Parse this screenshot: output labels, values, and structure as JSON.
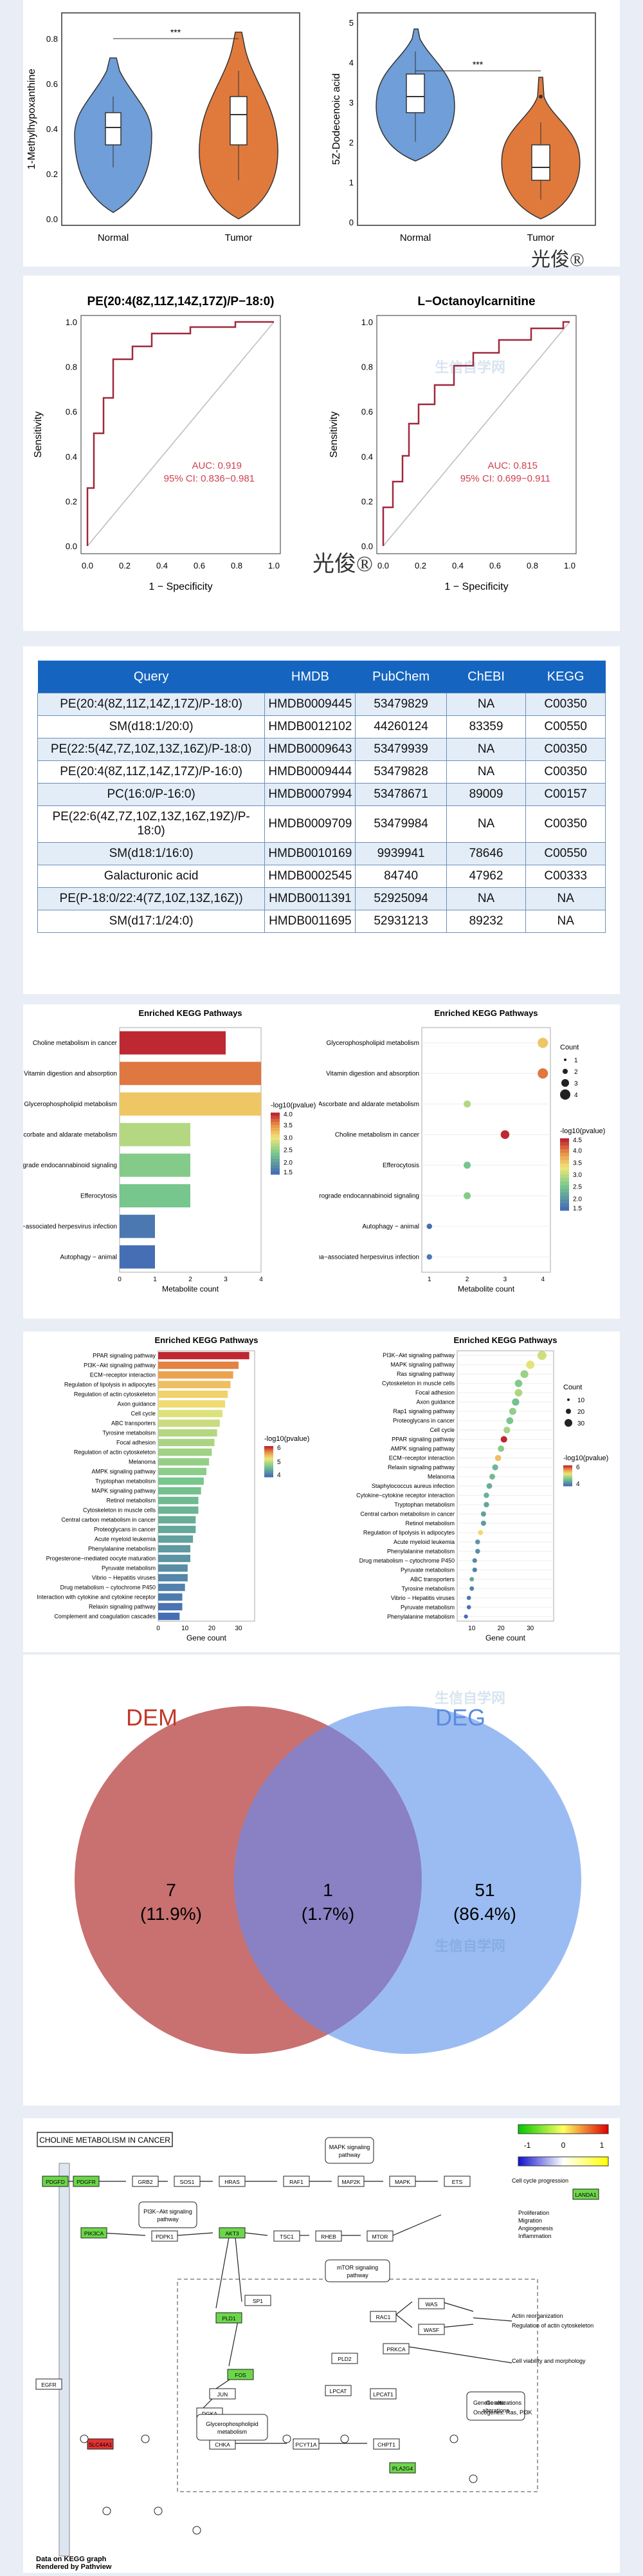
{
  "violin": {
    "left": {
      "ylabel": "1-Methylhypoxanthine",
      "ticks": [
        "0.0",
        "0.2",
        "0.4",
        "0.6",
        "0.8"
      ],
      "groups": [
        "Normal",
        "Tumor"
      ],
      "colors": [
        "#6f9ed8",
        "#e07a3c"
      ],
      "medians": [
        0.28,
        0.37
      ],
      "signif": "***"
    },
    "right": {
      "ylabel": "5Z-Dodecenoic acid",
      "ticks": [
        "0",
        "1",
        "2",
        "3",
        "4",
        "5"
      ],
      "groups": [
        "Normal",
        "Tumor"
      ],
      "colors": [
        "#6f9ed8",
        "#e07a3c"
      ],
      "medians": [
        3.0,
        2.1
      ],
      "signif": "***"
    },
    "signature": "光俊®"
  },
  "roc": {
    "left": {
      "title": "PE(20:4(8Z,11Z,14Z,17Z)/P−18:0)",
      "auc": "AUC: 0.919",
      "ci": "95% CI: 0.836−0.981"
    },
    "right": {
      "title": "L−Octanoylcarnitine",
      "auc": "AUC: 0.815",
      "ci": "95% CI: 0.699−0.911"
    },
    "xlabel": "1 − Specificity",
    "ylabel": "Sensitivity",
    "ticks": [
      "0.0",
      "0.2",
      "0.4",
      "0.6",
      "0.8",
      "1.0"
    ],
    "signature": "光俊®"
  },
  "table": {
    "headers": [
      "Query",
      "HMDB",
      "PubChem",
      "ChEBI",
      "KEGG"
    ],
    "rows": [
      [
        "PE(20:4(8Z,11Z,14Z,17Z)/P-18:0)",
        "HMDB0009445",
        "53479829",
        "NA",
        "C00350"
      ],
      [
        "SM(d18:1/20:0)",
        "HMDB0012102",
        "44260124",
        "83359",
        "C00550"
      ],
      [
        "PE(22:5(4Z,7Z,10Z,13Z,16Z)/P-18:0)",
        "HMDB0009643",
        "53479939",
        "NA",
        "C00350"
      ],
      [
        "PE(20:4(8Z,11Z,14Z,17Z)/P-16:0)",
        "HMDB0009444",
        "53479828",
        "NA",
        "C00350"
      ],
      [
        "PC(16:0/P-16:0)",
        "HMDB0007994",
        "53478671",
        "89009",
        "C00157"
      ],
      [
        "PE(22:6(4Z,7Z,10Z,13Z,16Z,19Z)/P-18:0)",
        "HMDB0009709",
        "53479984",
        "NA",
        "C00350"
      ],
      [
        "SM(d18:1/16:0)",
        "HMDB0010169",
        "9939941",
        "78646",
        "C00550"
      ],
      [
        "Galacturonic acid",
        "HMDB0002545",
        "84740",
        "47962",
        "C00333"
      ],
      [
        "PE(P-18:0/22:4(7Z,10Z,13Z,16Z))",
        "HMDB0011391",
        "52925094",
        "NA",
        "NA"
      ],
      [
        "SM(d17:1/24:0)",
        "HMDB0011695",
        "52931213",
        "89232",
        "NA"
      ]
    ]
  },
  "chart_data": [
    {
      "type": "bar",
      "title": "Enriched KEGG Pathways",
      "xlabel": "Metabolite count",
      "categories": [
        "Choline metabolism in cancer",
        "Vitamin digestion and absorption",
        "Glycerophospholipid metabolism",
        "Ascorbate and aldarate metabolism",
        "Retrograde endocannabinoid signaling",
        "Efferocytosis",
        "Kaposi sarcoma−associated herpesvirus infection",
        "Autophagy − animal"
      ],
      "values": [
        3,
        4,
        4,
        2,
        2,
        2,
        1,
        1
      ],
      "neglog10p": [
        4.1,
        3.7,
        3.2,
        2.6,
        2.3,
        2.2,
        1.4,
        1.3
      ],
      "xticks": [
        "0",
        "1",
        "2",
        "3",
        "4"
      ],
      "legend_title": "-log10(pvalue)",
      "legend_ticks": [
        "4.0",
        "3.5",
        "3.0",
        "2.5",
        "2.0",
        "1.5"
      ]
    },
    {
      "type": "scatter",
      "title": "Enriched KEGG Pathways",
      "xlabel": "Metabolite count",
      "categories": [
        "Glycerophospholipid metabolism",
        "Vitamin digestion and absorption",
        "Ascorbate and aldarate metabolism",
        "Choline metabolism in cancer",
        "Efferocytosis",
        "Retrograde endocannabinoid signaling",
        "Autophagy − animal",
        "Kaposi sarcoma−associated herpesvirus infection"
      ],
      "values": [
        4,
        4,
        2,
        3,
        2,
        2,
        1,
        1
      ],
      "neglog10p": [
        3.2,
        3.7,
        2.6,
        4.1,
        2.2,
        2.3,
        1.3,
        1.4
      ],
      "xticks": [
        "1",
        "2",
        "3",
        "4"
      ],
      "size_legend_title": "Count",
      "size_legend": [
        "1",
        "2",
        "3",
        "4"
      ],
      "legend_title": "-log10(pvalue)",
      "legend_ticks": [
        "4.5",
        "4.0",
        "3.5",
        "3.0",
        "2.5",
        "2.0",
        "1.5"
      ]
    },
    {
      "type": "bar",
      "title": "Enriched KEGG Pathways",
      "xlabel": "Gene count",
      "categories": [
        "PPAR signaling pathway",
        "PI3K−Akt signaling pathway",
        "ECM−receptor interaction",
        "Regulation of lipolysis in adipocytes",
        "Regulation of actin cytoskeleton",
        "Axon guidance",
        "Cell cycle",
        "ABC transporters",
        "Tyrosine metabolism",
        "Focal adhesion",
        "Regulation of actin cytoskeleton",
        "Melanoma",
        "AMPK signaling pathway",
        "Tryptophan metabolism",
        "MAPK signaling pathway",
        "Retinol metabolism",
        "Cytoskeleton in muscle cells",
        "Central carbon metabolism in cancer",
        "Proteoglycans in cancer",
        "Acute myeloid leukemia",
        "Phenylalanine metabolism",
        "Progesterone−mediated oocyte maturation",
        "Pyruvate metabolism",
        "Vibrio − Hepatitis viruses",
        "Drug metabolism − cytochrome P450",
        "Interaction with cytokine and cytokine receptor",
        "Relaxin signaling pathway",
        "Complement and coagulation cascades"
      ],
      "values": [
        34,
        30,
        28,
        27,
        26,
        25,
        24,
        23,
        22,
        21,
        20,
        19,
        18,
        17,
        16,
        15,
        15,
        14,
        14,
        13,
        12,
        12,
        11,
        11,
        10,
        9,
        9,
        8
      ],
      "neglog10p": [
        6.5,
        5.8,
        5.5,
        5.2,
        5.0,
        4.9,
        4.6,
        4.4,
        4.2,
        4.1,
        4.0,
        3.9,
        3.8,
        3.6,
        3.5,
        3.4,
        3.3,
        3.2,
        3.1,
        3.0,
        2.9,
        2.8,
        2.7,
        2.6,
        2.5,
        2.4,
        2.3,
        2.2
      ],
      "xticks": [
        "0",
        "10",
        "20",
        "30"
      ],
      "legend_title": "-log10(pvalue)",
      "legend_ticks": [
        "6",
        "5",
        "4"
      ]
    },
    {
      "type": "scatter",
      "title": "Enriched KEGG Pathways",
      "xlabel": "Gene count",
      "categories": [
        "PI3K−Akt signaling pathway",
        "MAPK signaling pathway",
        "Ras signaling pathway",
        "Cytoskeleton in muscle cells",
        "Focal adhesion",
        "Axon guidance",
        "Rap1 signaling pathway",
        "Proteoglycans in cancer",
        "Cell cycle",
        "PPAR signaling pathway",
        "AMPK signaling pathway",
        "ECM−receptor interaction",
        "Relaxin signaling pathway",
        "Melanoma",
        "Staphylococcus aureus infection",
        "Cytokine−cytokine receptor interaction",
        "Tryptophan metabolism",
        "Central carbon metabolism in cancer",
        "Retinol metabolism",
        "Regulation of lipolysis in adipocytes",
        "Acute myeloid leukemia",
        "Phenylalanine metabolism",
        "Drug metabolism − cytochrome P450",
        "Pyruvate metabolism",
        "ABC transporters",
        "Tyrosine metabolism",
        "Vibrio − Hepatitis viruses",
        "Pyruvate metabolism",
        "Phenylalanine metabolism"
      ],
      "values": [
        34,
        30,
        28,
        26,
        26,
        25,
        24,
        23,
        22,
        21,
        20,
        19,
        18,
        17,
        16,
        15,
        15,
        14,
        14,
        13,
        12,
        12,
        11,
        11,
        10,
        10,
        9,
        9,
        8
      ],
      "neglog10p": [
        4.5,
        4.7,
        3.9,
        3.6,
        4.1,
        3.4,
        3.8,
        3.5,
        4.0,
        6.8,
        3.7,
        5.3,
        3.2,
        3.3,
        3.0,
        3.1,
        2.9,
        2.8,
        2.7,
        5.0,
        2.6,
        2.5,
        2.4,
        2.3,
        2.9,
        2.2,
        2.1,
        2.0,
        1.9
      ],
      "xticks": [
        "10",
        "20",
        "30"
      ],
      "size_legend_title": "Count",
      "size_legend": [
        "10",
        "20",
        "30"
      ],
      "legend_title": "-log10(pvalue)",
      "legend_ticks": [
        "6",
        "4"
      ]
    }
  ],
  "venn": {
    "left_label": "DEM",
    "right_label": "DEG",
    "left_only": "7",
    "left_pct": "(11.9%)",
    "both": "1",
    "both_pct": "(1.7%)",
    "right_only": "51",
    "right_pct": "(86.4%)",
    "left_color": "#c97070",
    "right_color": "#9bbcf2",
    "overlap_color": "#8a80c4"
  },
  "pathway": {
    "title": "CHOLINE METABOLISM IN CANCER",
    "scale_ticks": [
      "-1",
      "0",
      "1"
    ],
    "footer_1": "Data on KEGG graph",
    "footer_2": "Rendered by Pathview",
    "nodes": [
      "PDGFD",
      "PDGFR",
      "GRB2",
      "SOS1",
      "HRAS",
      "RAF1",
      "MAP2K",
      "MAPK",
      "ETS",
      "PIK3CA",
      "AKT3",
      "PDPK1",
      "TSC1",
      "RHEB",
      "MTOR",
      "SP1",
      "PLD1",
      "FOS",
      "JUN",
      "DGKA",
      "PLD2",
      "LPCAT",
      "LPCAT1",
      "CHKA",
      "CHPT1",
      "PCYT1A",
      "RAC1",
      "WAS",
      "WASF",
      "PRKCA",
      "LANDA1",
      "EGFR",
      "PLA2G4",
      "SLC44A1"
    ],
    "boxes": [
      "MAPK signaling pathway",
      "PI3K−Akt signaling pathway",
      "mTOR signaling pathway",
      "Glycerophospholipid metabolism",
      "Genetic alterations"
    ],
    "outcomes": [
      "Cell cycle progression",
      "Proliferation",
      "Migration",
      "Angiogenesis",
      "Inflammation",
      "Actin reorganization",
      "Regulation of actin cytoskeleton",
      "Cell viability and morphology"
    ],
    "legend_lines": [
      "Genetic alterations",
      "Oncogenes: Ras, PI3K"
    ]
  },
  "watermark": "生信自学网"
}
